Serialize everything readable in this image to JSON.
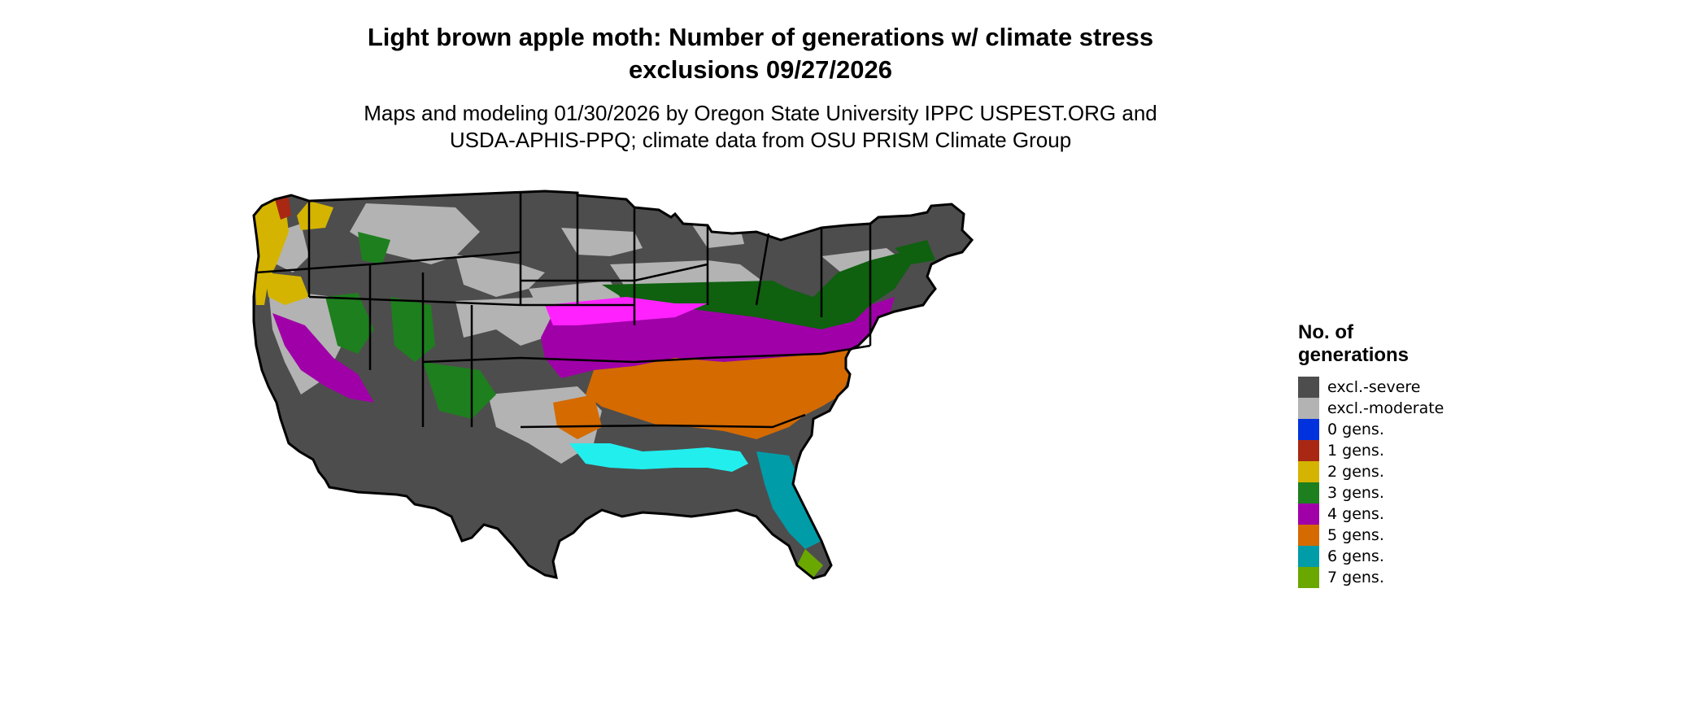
{
  "title": {
    "line1": "Light brown apple moth: Number of generations w/ climate stress",
    "line2": "exclusions 09/27/2026"
  },
  "subtitle": {
    "line1": "Maps and modeling 01/30/2026 by Oregon State University IPPC USPEST.ORG and",
    "line2": "USDA-APHIS-PPQ; climate data from OSU PRISM Climate Group"
  },
  "legend": {
    "title_line1": "No. of",
    "title_line2": "generations",
    "items": [
      {
        "label": "excl.-severe",
        "color": "#4d4d4d"
      },
      {
        "label": "excl.-moderate",
        "color": "#b3b3b3"
      },
      {
        "label": "0 gens.",
        "color": "#0033dd"
      },
      {
        "label": "1 gens.",
        "color": "#a82814"
      },
      {
        "label": "2 gens.",
        "color": "#d4b400"
      },
      {
        "label": "3 gens.",
        "color": "#1e7f1e"
      },
      {
        "label": "4 gens.",
        "color": "#a000a8"
      },
      {
        "label": "5 gens.",
        "color": "#d46a00"
      },
      {
        "label": "6 gens.",
        "color": "#009ca8"
      },
      {
        "label": "7 gens.",
        "color": "#6aa800"
      }
    ]
  },
  "map_colors": {
    "severe": "#4d4d4d",
    "moderate": "#b3b3b3",
    "two": "#d4b400",
    "three": "#1e7f1e",
    "three_dark": "#0f600f",
    "four": "#a000a8",
    "four_light": "#ff22ff",
    "five": "#d46a00",
    "five_light": "#f0a040",
    "six": "#009ca8",
    "six_light": "#22eeee",
    "seven": "#6aa800",
    "one": "#a82814"
  }
}
